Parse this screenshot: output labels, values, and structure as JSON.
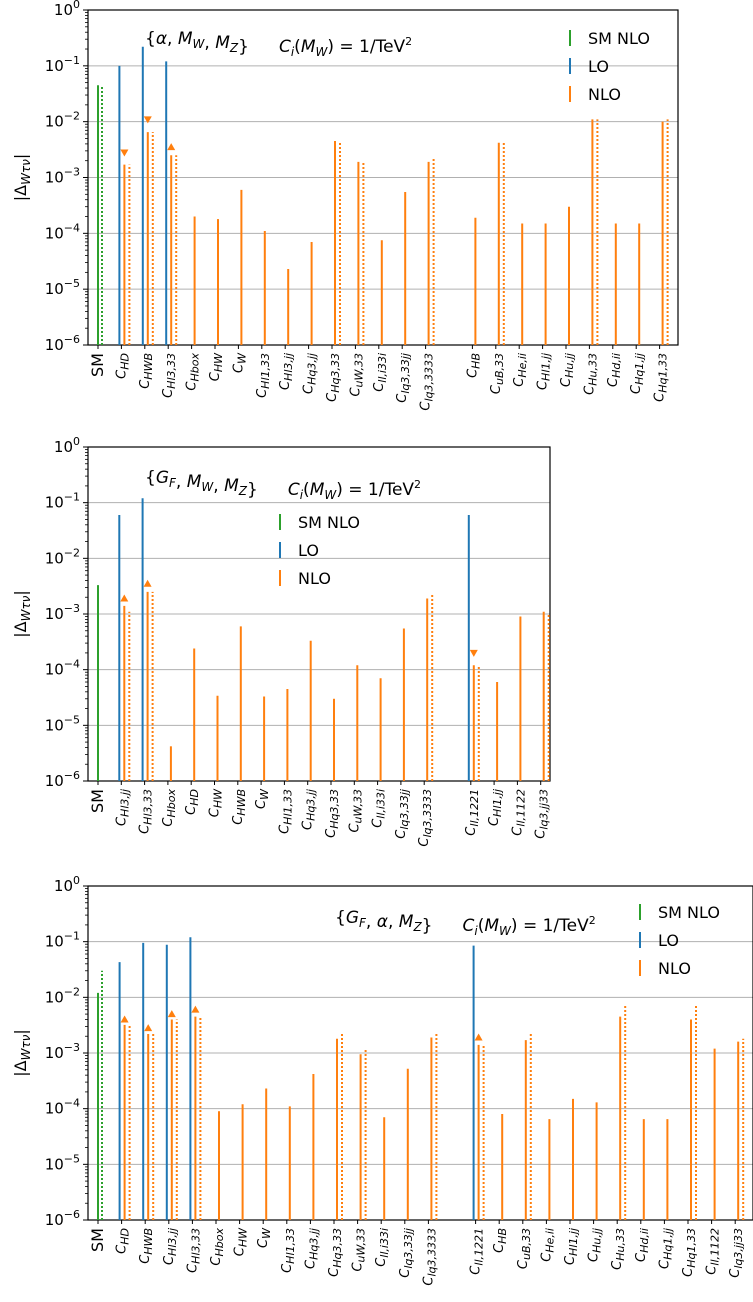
{
  "colors": {
    "sm": "#2ca02c",
    "lo": "#1f77b4",
    "nlo": "#ff7f0e",
    "grid": "#b0b0b0"
  },
  "chart_data": [
    {
      "type": "bar",
      "title": "{α, M_W, M_Z}    C_i(M_W) = 1/TeV²",
      "title_parts": {
        "scheme": "{α, M",
        "rest": "C",
        "eq": "(M",
        "val": ") = 1/TeV"
      },
      "ylabel": "|Δ_Wτν|",
      "yscale": "log",
      "ylim": [
        1e-06,
        1
      ],
      "yticks": [
        "10⁰",
        "10⁻¹",
        "10⁻²",
        "10⁻³",
        "10⁻⁴",
        "10⁻⁵",
        "10⁻⁶"
      ],
      "legend": [
        "SM NLO",
        "LO",
        "NLO"
      ],
      "legend_position": "top-right",
      "grid": "y",
      "categories": [
        {
          "label": "SM",
          "sm": 0.045,
          "sm_dot": 0.045
        },
        {
          "label": "C_HD",
          "lo": 0.1,
          "nlo": 0.0017,
          "nlo_dot": 0.0017,
          "marker": "down",
          "marker_val": 0.0028
        },
        {
          "label": "C_HWB",
          "lo": 0.22,
          "nlo": 0.0065,
          "nlo_dot": 0.0065,
          "marker": "down",
          "marker_val": 0.011
        },
        {
          "label": "C_Hl3,33",
          "lo": 0.12,
          "nlo": 0.0025,
          "nlo_dot": 0.0025,
          "marker": "up",
          "marker_val": 0.0035
        },
        {
          "label": "C_Hbox",
          "nlo": 0.0002
        },
        {
          "label": "C_HW",
          "nlo": 0.00018
        },
        {
          "label": "C_W",
          "nlo": 0.0006
        },
        {
          "label": "C_Hl1,33",
          "nlo": 0.00011
        },
        {
          "label": "C_Hl3,jj",
          "nlo": 2.3e-05
        },
        {
          "label": "C_Hq3,jj",
          "nlo": 7e-05
        },
        {
          "label": "C_Hq3,33",
          "nlo": 0.0045,
          "nlo_dot": 0.0045
        },
        {
          "label": "C_uW,33",
          "nlo": 0.0019,
          "nlo_dot": 0.0019
        },
        {
          "label": "C_ll,i33i",
          "nlo": 7.5e-05
        },
        {
          "label": "C_lq3,33jj",
          "nlo": 0.00055
        },
        {
          "label": "C_lq3,3333",
          "nlo": 0.0019,
          "nlo_dot": 0.0022
        },
        {
          "label": "",
          "gap": true
        },
        {
          "label": "C_HB",
          "nlo": 0.00019
        },
        {
          "label": "C_uB,33",
          "nlo": 0.0042,
          "nlo_dot": 0.0042
        },
        {
          "label": "C_He,ii",
          "nlo": 0.00015
        },
        {
          "label": "C_Hl1,jj",
          "nlo": 0.00015
        },
        {
          "label": "C_Hu,jj",
          "nlo": 0.0003
        },
        {
          "label": "C_Hu,33",
          "nlo": 0.011,
          "nlo_dot": 0.011
        },
        {
          "label": "C_Hd,ii",
          "nlo": 0.00015
        },
        {
          "label": "C_Hq1,jj",
          "nlo": 0.00015
        },
        {
          "label": "C_Hq1,33",
          "nlo": 0.01,
          "nlo_dot": 0.011
        }
      ]
    },
    {
      "type": "bar",
      "title": "{G_F, M_W, M_Z}    C_i(M_W) = 1/TeV²",
      "ylabel": "|Δ_Wτν|",
      "yscale": "log",
      "ylim": [
        1e-06,
        1
      ],
      "yticks": [
        "10⁰",
        "10⁻¹",
        "10⁻²",
        "10⁻³",
        "10⁻⁴",
        "10⁻⁵",
        "10⁻⁶"
      ],
      "legend": [
        "SM NLO",
        "LO",
        "NLO"
      ],
      "legend_position": "upper-center",
      "grid": "y",
      "categories": [
        {
          "label": "SM",
          "sm": 0.0033
        },
        {
          "label": "C_Hl3,jj",
          "lo": 0.06,
          "nlo": 0.0014,
          "nlo_dot": 0.0011,
          "marker": "up",
          "marker_val": 0.0019
        },
        {
          "label": "C_Hl3,33",
          "lo": 0.12,
          "nlo": 0.0025,
          "nlo_dot": 0.0025,
          "marker": "up",
          "marker_val": 0.0035
        },
        {
          "label": "C_Hbox",
          "nlo": 4.2e-06
        },
        {
          "label": "C_HD",
          "nlo": 0.00024
        },
        {
          "label": "C_HW",
          "nlo": 3.4e-05
        },
        {
          "label": "C_HWB",
          "nlo": 0.0006
        },
        {
          "label": "C_W",
          "nlo": 3.3e-05
        },
        {
          "label": "C_Hl1,33",
          "nlo": 4.5e-05
        },
        {
          "label": "C_Hq3,jj",
          "nlo": 0.00033
        },
        {
          "label": "C_Hq3,33",
          "nlo": 3e-05
        },
        {
          "label": "C_uW,33",
          "nlo": 0.00012
        },
        {
          "label": "C_ll,i33i",
          "nlo": 7e-05
        },
        {
          "label": "C_lq3,33jj",
          "nlo": 0.00055
        },
        {
          "label": "C_lq3,3333",
          "nlo": 0.0019,
          "nlo_dot": 0.0022
        },
        {
          "label": "",
          "gap": true
        },
        {
          "label": "C_ll,1221",
          "lo": 0.06,
          "nlo": 0.00012,
          "nlo_dot": 0.00012,
          "marker": "down",
          "marker_val": 0.0002
        },
        {
          "label": "C_Hl1,jj",
          "nlo": 6e-05
        },
        {
          "label": "C_ll,1122",
          "nlo": 0.0009
        },
        {
          "label": "C_lq3,jj33",
          "nlo": 0.0011,
          "nlo_dot": 0.001
        }
      ]
    },
    {
      "type": "bar",
      "title": "{G_F, α, M_Z}    C_i(M_W) = 1/TeV²",
      "ylabel": "|Δ_Wτν|",
      "yscale": "log",
      "ylim": [
        1e-06,
        1
      ],
      "yticks": [
        "10⁰",
        "10⁻¹",
        "10⁻²",
        "10⁻³",
        "10⁻⁴",
        "10⁻⁵",
        "10⁻⁶"
      ],
      "legend": [
        "SM NLO",
        "LO",
        "NLO"
      ],
      "legend_position": "top-right",
      "grid": "y",
      "categories": [
        {
          "label": "SM",
          "sm": 0.012,
          "sm_dot": 0.03
        },
        {
          "label": "C_HD",
          "lo": 0.043,
          "nlo": 0.0032,
          "nlo_dot": 0.0032,
          "marker": "up",
          "marker_val": 0.004
        },
        {
          "label": "C_HWB",
          "lo": 0.095,
          "nlo": 0.0022,
          "nlo_dot": 0.0022,
          "marker": "up",
          "marker_val": 0.0028
        },
        {
          "label": "C_Hl3,jj",
          "lo": 0.088,
          "nlo": 0.004,
          "nlo_dot": 0.004,
          "marker": "up",
          "marker_val": 0.005
        },
        {
          "label": "C_Hl3,33",
          "lo": 0.12,
          "nlo": 0.0045,
          "nlo_dot": 0.0045,
          "marker": "up",
          "marker_val": 0.006
        },
        {
          "label": "C_Hbox",
          "nlo": 9e-05
        },
        {
          "label": "C_HW",
          "nlo": 0.00012
        },
        {
          "label": "C_W",
          "nlo": 0.00023
        },
        {
          "label": "C_Hl1,33",
          "nlo": 0.00011
        },
        {
          "label": "C_Hq3,jj",
          "nlo": 0.00042
        },
        {
          "label": "C_Hq3,33",
          "nlo": 0.0018,
          "nlo_dot": 0.0022
        },
        {
          "label": "C_uW,33",
          "nlo": 0.00095,
          "nlo_dot": 0.0012
        },
        {
          "label": "C_ll,i33i",
          "nlo": 7e-05
        },
        {
          "label": "C_lq3,33jj",
          "nlo": 0.00052
        },
        {
          "label": "C_lq3,3333",
          "nlo": 0.0019,
          "nlo_dot": 0.0022
        },
        {
          "label": "",
          "gap": true
        },
        {
          "label": "C_ll,1221",
          "lo": 0.085,
          "nlo": 0.0014,
          "nlo_dot": 0.0014,
          "marker": "up",
          "marker_val": 0.0019
        },
        {
          "label": "C_HB",
          "nlo": 8e-05
        },
        {
          "label": "C_uB,33",
          "nlo": 0.0017,
          "nlo_dot": 0.0022
        },
        {
          "label": "C_He,ii",
          "nlo": 6.5e-05
        },
        {
          "label": "C_Hl1,jj",
          "nlo": 0.00015
        },
        {
          "label": "C_Hu,jj",
          "nlo": 0.00013
        },
        {
          "label": "C_Hu,33",
          "nlo": 0.0045,
          "nlo_dot": 0.0072
        },
        {
          "label": "C_Hd,ii",
          "nlo": 6.5e-05
        },
        {
          "label": "C_Hq1,jj",
          "nlo": 6.5e-05
        },
        {
          "label": "C_Hq1,33",
          "nlo": 0.004,
          "nlo_dot": 0.0072
        },
        {
          "label": "C_ll,1122",
          "nlo": 0.0012
        },
        {
          "label": "C_lq3,jj33",
          "nlo": 0.0016,
          "nlo_dot": 0.0018
        }
      ]
    }
  ]
}
